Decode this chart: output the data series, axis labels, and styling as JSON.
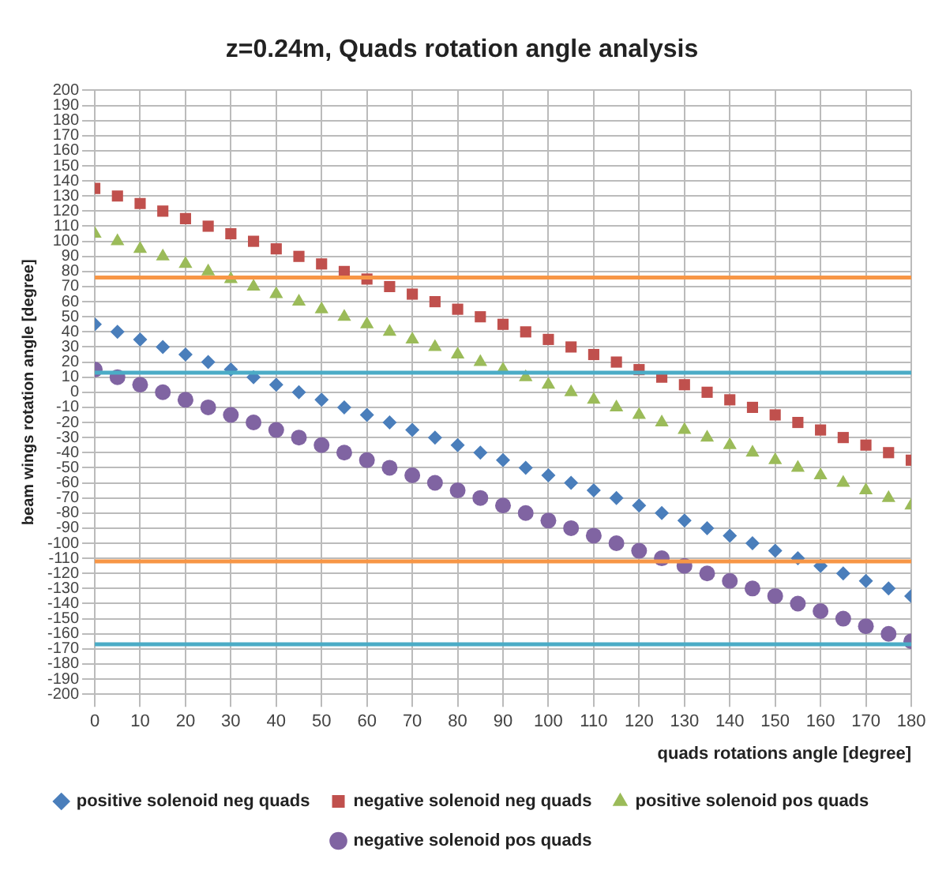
{
  "chart_data": {
    "type": "scatter",
    "title": "z=0.24m, Quads rotation angle analysis",
    "xlabel": "quads rotations angle [degree]",
    "ylabel": "beam wings rotation angle [degree]",
    "x": [
      0,
      5,
      10,
      15,
      20,
      25,
      30,
      35,
      40,
      45,
      50,
      55,
      60,
      65,
      70,
      75,
      80,
      85,
      90,
      95,
      100,
      105,
      110,
      115,
      120,
      125,
      130,
      135,
      140,
      145,
      150,
      155,
      160,
      165,
      170,
      175,
      180
    ],
    "series": [
      {
        "name": "positive solenoid neg quads",
        "color": "#4a7ebb",
        "marker": "diamond",
        "values": [
          45,
          40,
          35,
          30,
          25,
          20,
          15,
          10,
          5,
          0,
          -5,
          -10,
          -15,
          -20,
          -25,
          -30,
          -35,
          -40,
          -45,
          -50,
          -55,
          -60,
          -65,
          -70,
          -75,
          -80,
          -85,
          -90,
          -95,
          -100,
          -105,
          -110,
          -115,
          -120,
          -125,
          -130,
          -135
        ]
      },
      {
        "name": "negative solenoid neg quads",
        "color": "#c0504d",
        "marker": "square",
        "values": [
          135,
          130,
          125,
          120,
          115,
          110,
          105,
          100,
          95,
          90,
          85,
          80,
          75,
          70,
          65,
          60,
          55,
          50,
          45,
          40,
          35,
          30,
          25,
          20,
          15,
          10,
          5,
          0,
          -5,
          -10,
          -15,
          -20,
          -25,
          -30,
          -35,
          -40,
          -45
        ]
      },
      {
        "name": "positive solenoid pos quads",
        "color": "#9bbb59",
        "marker": "triangle",
        "values": [
          105,
          100,
          95,
          90,
          85,
          80,
          75,
          70,
          65,
          60,
          55,
          50,
          45,
          40,
          35,
          30,
          25,
          20,
          15,
          10,
          5,
          0,
          -5,
          -10,
          -15,
          -20,
          -25,
          -30,
          -35,
          -40,
          -45,
          -50,
          -55,
          -60,
          -65,
          -70,
          -75
        ]
      },
      {
        "name": "negative solenoid pos quads",
        "color": "#8064a2",
        "marker": "circle",
        "values": [
          15,
          10,
          5,
          0,
          -5,
          -10,
          -15,
          -20,
          -25,
          -30,
          -35,
          -40,
          -45,
          -50,
          -55,
          -60,
          -65,
          -70,
          -75,
          -80,
          -85,
          -90,
          -95,
          -100,
          -105,
          -110,
          -115,
          -120,
          -125,
          -130,
          -135,
          -140,
          -145,
          -150,
          -155,
          -160,
          -165
        ]
      }
    ],
    "xlim": [
      0,
      180
    ],
    "xticks": [
      0,
      10,
      20,
      30,
      40,
      50,
      60,
      70,
      80,
      90,
      100,
      110,
      120,
      130,
      140,
      150,
      160,
      170,
      180
    ],
    "ylim": [
      -200,
      200
    ],
    "yticks": [
      -200,
      -190,
      -180,
      -170,
      -160,
      -150,
      -140,
      -130,
      -120,
      -110,
      -100,
      -90,
      -80,
      -70,
      -60,
      -50,
      -40,
      -30,
      -20,
      -10,
      0,
      10,
      20,
      30,
      40,
      50,
      60,
      70,
      80,
      90,
      100,
      110,
      120,
      130,
      140,
      150,
      160,
      170,
      180,
      190,
      200
    ],
    "ref_lines": [
      {
        "axis": "y",
        "value": 76,
        "color": "#f79646"
      },
      {
        "axis": "y",
        "value": -112,
        "color": "#f79646"
      },
      {
        "axis": "y",
        "value": 13,
        "color": "#4bacc6"
      },
      {
        "axis": "y",
        "value": -167,
        "color": "#4bacc6"
      }
    ],
    "grid": true,
    "legend": "bottom"
  }
}
